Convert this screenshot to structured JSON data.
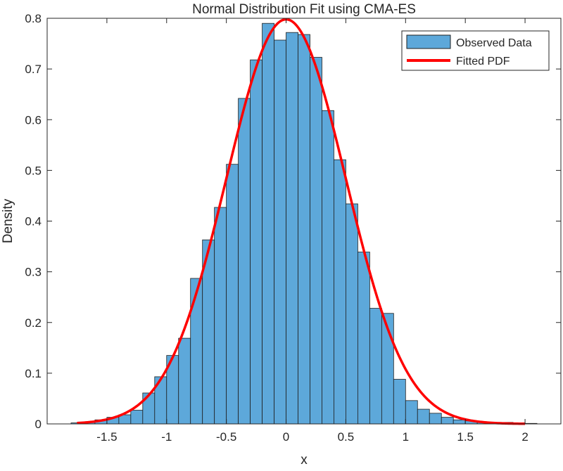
{
  "chart_data": {
    "type": "bar",
    "title": "Normal Distribution Fit using CMA-ES",
    "xlabel": "x",
    "ylabel": "Density",
    "xlim": [
      -2.0,
      2.3
    ],
    "ylim": [
      0,
      0.8
    ],
    "xticks": [
      -1.5,
      -1,
      -0.5,
      0,
      0.5,
      1,
      1.5,
      2
    ],
    "yticks": [
      0,
      0.1,
      0.2,
      0.3,
      0.4,
      0.5,
      0.6,
      0.7,
      0.8
    ],
    "grid": false,
    "legend_position": "top-right",
    "colors": {
      "bar_fill": "#5DA8DA",
      "bar_edge": "#1f1f1f",
      "fit_line": "#FF0000",
      "axis": "#262626"
    },
    "histogram": {
      "name": "Observed Data",
      "bin_edges": [
        -1.8,
        -1.7,
        -1.6,
        -1.5,
        -1.4,
        -1.3,
        -1.2,
        -1.1,
        -1.0,
        -0.9,
        -0.8,
        -0.7,
        -0.6,
        -0.5,
        -0.4,
        -0.3,
        -0.2,
        -0.1,
        0.0,
        0.1,
        0.2,
        0.3,
        0.4,
        0.5,
        0.6,
        0.7,
        0.8,
        0.9,
        1.0,
        1.1,
        1.2,
        1.3,
        1.4,
        1.5,
        1.6,
        1.7,
        1.8,
        1.9,
        2.0,
        2.1
      ],
      "density": [
        0.002,
        0.004,
        0.008,
        0.013,
        0.018,
        0.027,
        0.061,
        0.093,
        0.135,
        0.169,
        0.287,
        0.363,
        0.427,
        0.512,
        0.642,
        0.718,
        0.79,
        0.757,
        0.772,
        0.768,
        0.723,
        0.618,
        0.521,
        0.434,
        0.339,
        0.228,
        0.218,
        0.088,
        0.046,
        0.029,
        0.021,
        0.013,
        0.008,
        0.006,
        0.004,
        0.003,
        0.003,
        0.001,
        0.001
      ]
    },
    "fit": {
      "name": "Fitted PDF",
      "mean": 0.0,
      "std": 0.5,
      "x_range": [
        -1.75,
        2.0
      ]
    }
  }
}
